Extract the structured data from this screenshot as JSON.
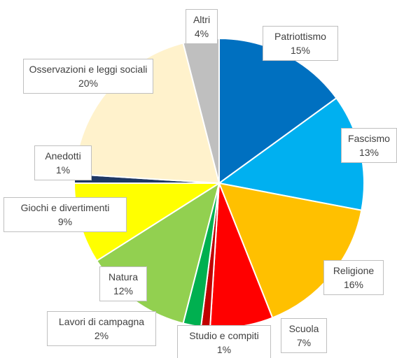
{
  "chart_data": {
    "type": "pie",
    "categories": [
      "Patriottismo",
      "Fascismo",
      "Religione",
      "Scuola",
      "Studio e compiti",
      "Lavori di campagna",
      "Natura",
      "Giochi e divertimenti",
      "Anedotti",
      "Osservazioni e leggi sociali",
      "Altri"
    ],
    "values": [
      15,
      13,
      16,
      7,
      1,
      2,
      12,
      9,
      1,
      20,
      4
    ],
    "value_labels": [
      "15%",
      "13%",
      "16%",
      "7%",
      "1%",
      "2%",
      "12%",
      "9%",
      "1%",
      "20%",
      "4%"
    ],
    "colors": [
      "#0070c0",
      "#00b0f0",
      "#ffc000",
      "#ff0000",
      "#c00000",
      "#00b050",
      "#92d050",
      "#ffff00",
      "#1f3864",
      "#fff2cc",
      "#bfbfbf"
    ]
  }
}
